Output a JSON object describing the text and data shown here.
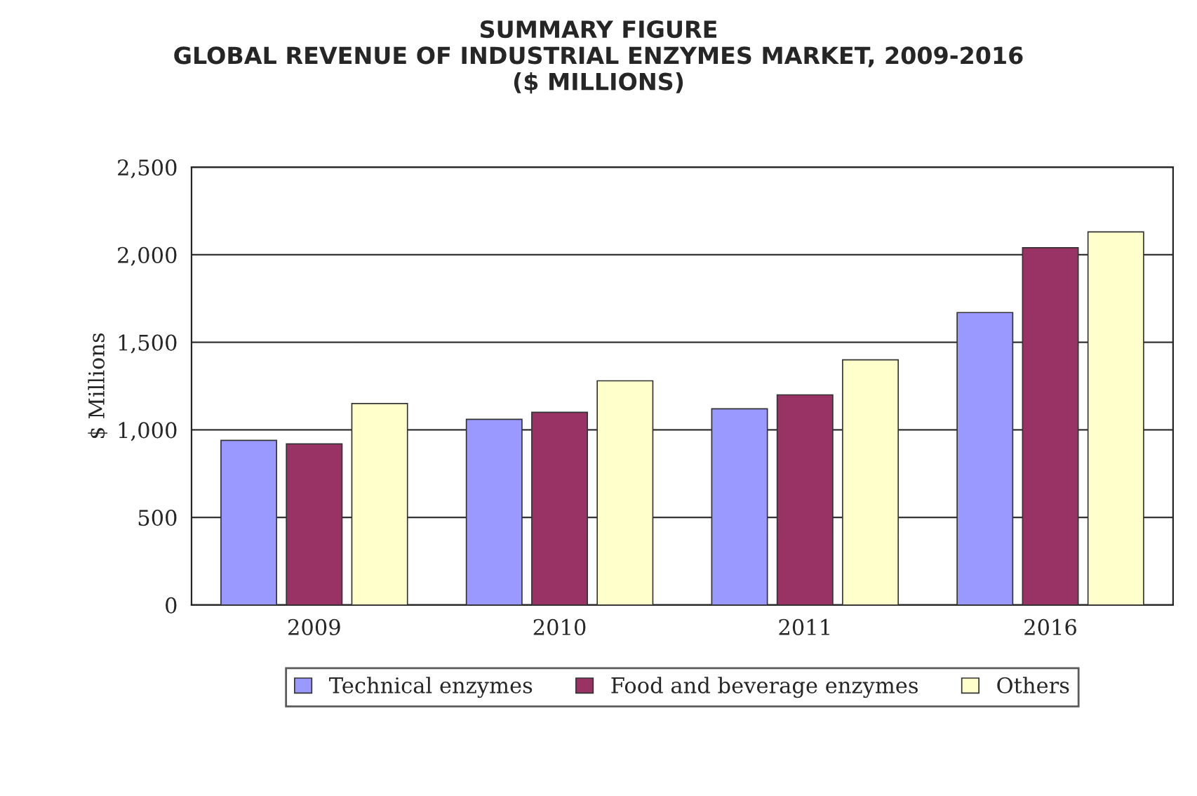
{
  "chart_data": {
    "type": "bar",
    "title": "SUMMARY FIGURE\nGLOBAL REVENUE OF INDUSTRIAL ENZYMES MARKET, 2009-2016\n($ MILLIONS)",
    "ylabel": "$ Millions",
    "categories": [
      "2009",
      "2010",
      "2011",
      "2016"
    ],
    "series": [
      {
        "name": "Technical enzymes",
        "color": "#9999ff",
        "values": [
          940,
          1060,
          1120,
          1670
        ]
      },
      {
        "name": "Food and beverage enzymes",
        "color": "#993366",
        "values": [
          920,
          1100,
          1200,
          2040
        ]
      },
      {
        "name": "Others",
        "color": "#ffffcc",
        "values": [
          1150,
          1280,
          1400,
          2130
        ]
      }
    ],
    "ylim": [
      0,
      2500
    ],
    "yticks": [
      {
        "value": 0,
        "label": "0"
      },
      {
        "value": 500,
        "label": "500"
      },
      {
        "value": 1000,
        "label": "1,000"
      },
      {
        "value": 1500,
        "label": "1,500"
      },
      {
        "value": 2000,
        "label": "2,000"
      },
      {
        "value": 2500,
        "label": "2,500"
      }
    ],
    "grid": "y",
    "legend": "bottom"
  }
}
